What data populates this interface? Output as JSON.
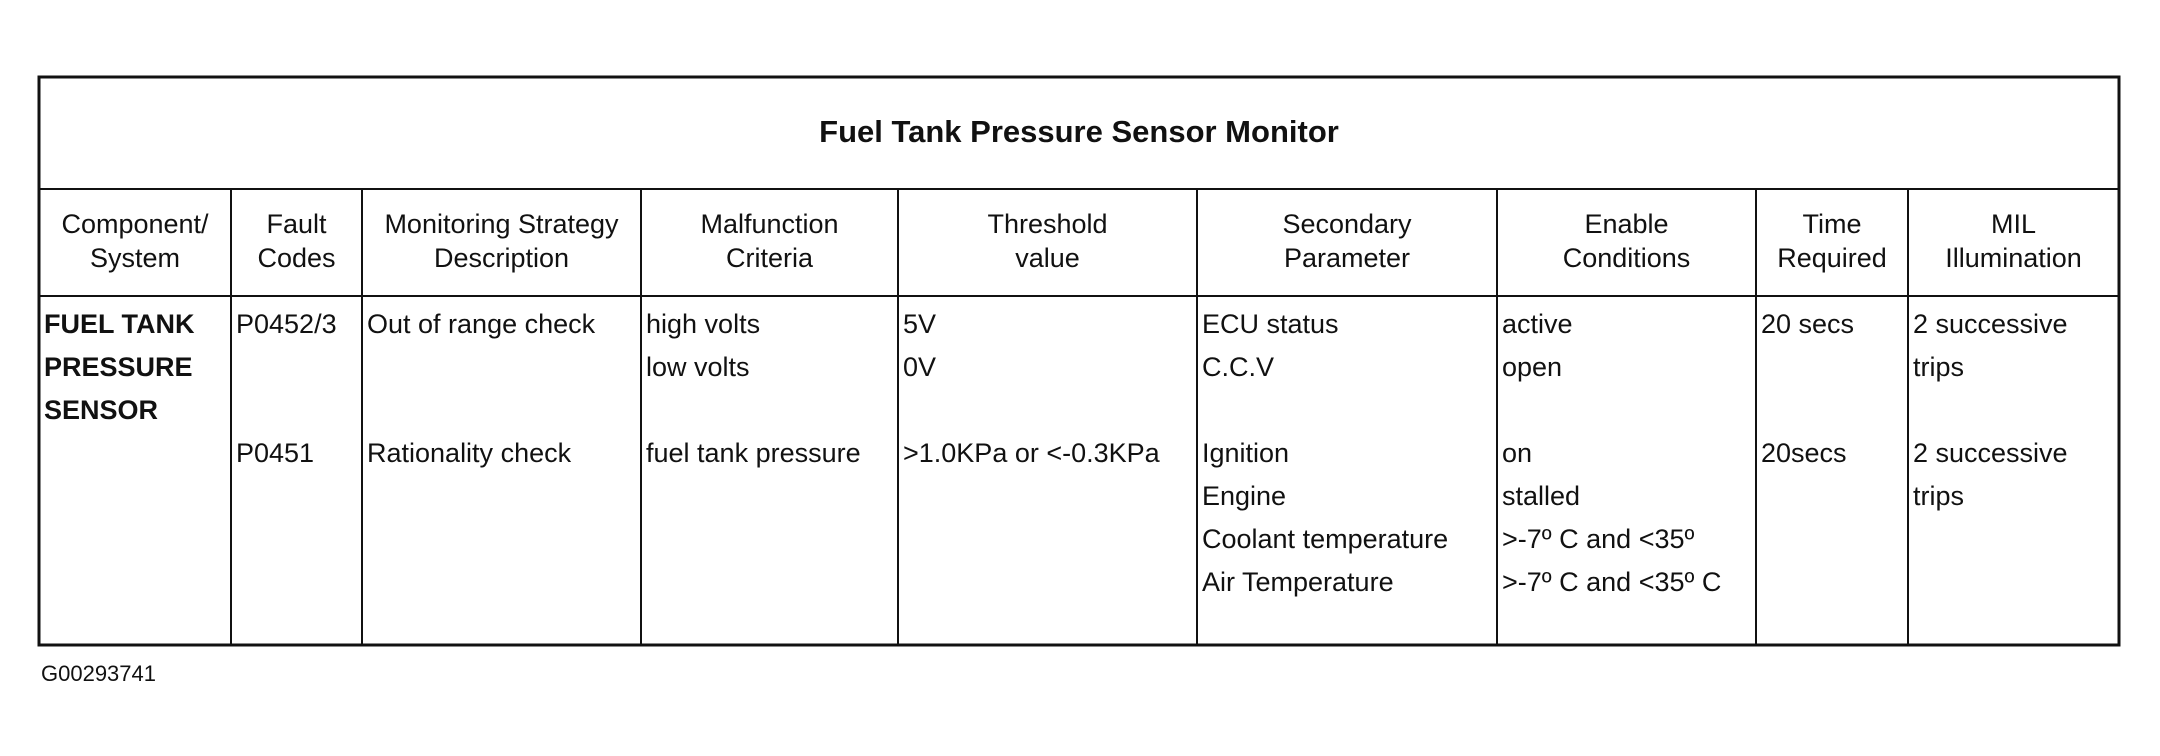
{
  "table": {
    "title": "Fuel Tank Pressure Sensor Monitor",
    "headers": [
      [
        "Component/",
        "System"
      ],
      [
        "Fault",
        "Codes"
      ],
      [
        "Monitoring Strategy",
        "Description"
      ],
      [
        "Malfunction",
        "Criteria"
      ],
      [
        "Threshold",
        "value"
      ],
      [
        "Secondary",
        "Parameter"
      ],
      [
        "Enable",
        "Conditions"
      ],
      [
        "Time",
        "Required"
      ],
      [
        "MIL",
        "Illumination"
      ]
    ],
    "component": [
      "FUEL TANK",
      "PRESSURE",
      "SENSOR"
    ],
    "groups": [
      {
        "fault": "P0452/3",
        "strategy": "Out of range check",
        "criteria": [
          "high volts",
          "low volts"
        ],
        "threshold": [
          "5V",
          "0V"
        ],
        "secondary": [
          "ECU status",
          "C.C.V"
        ],
        "enable": [
          "active",
          "open"
        ],
        "time": "20 secs",
        "mil": [
          "2 successive",
          "trips"
        ]
      },
      {
        "fault": "P0451",
        "strategy": "Rationality check",
        "criteria": [
          "fuel tank pressure"
        ],
        "threshold": [
          ">1.0KPa or <-0.3KPa"
        ],
        "secondary": [
          "Ignition",
          "Engine",
          "Coolant temperature",
          "Air Temperature"
        ],
        "enable": [
          "on",
          "stalled",
          ">-7º C and <35º",
          ">-7º C and <35º C"
        ],
        "time": "20secs",
        "mil": [
          "2 successive",
          "trips"
        ]
      }
    ]
  },
  "footer": {
    "code": "G00293741"
  }
}
